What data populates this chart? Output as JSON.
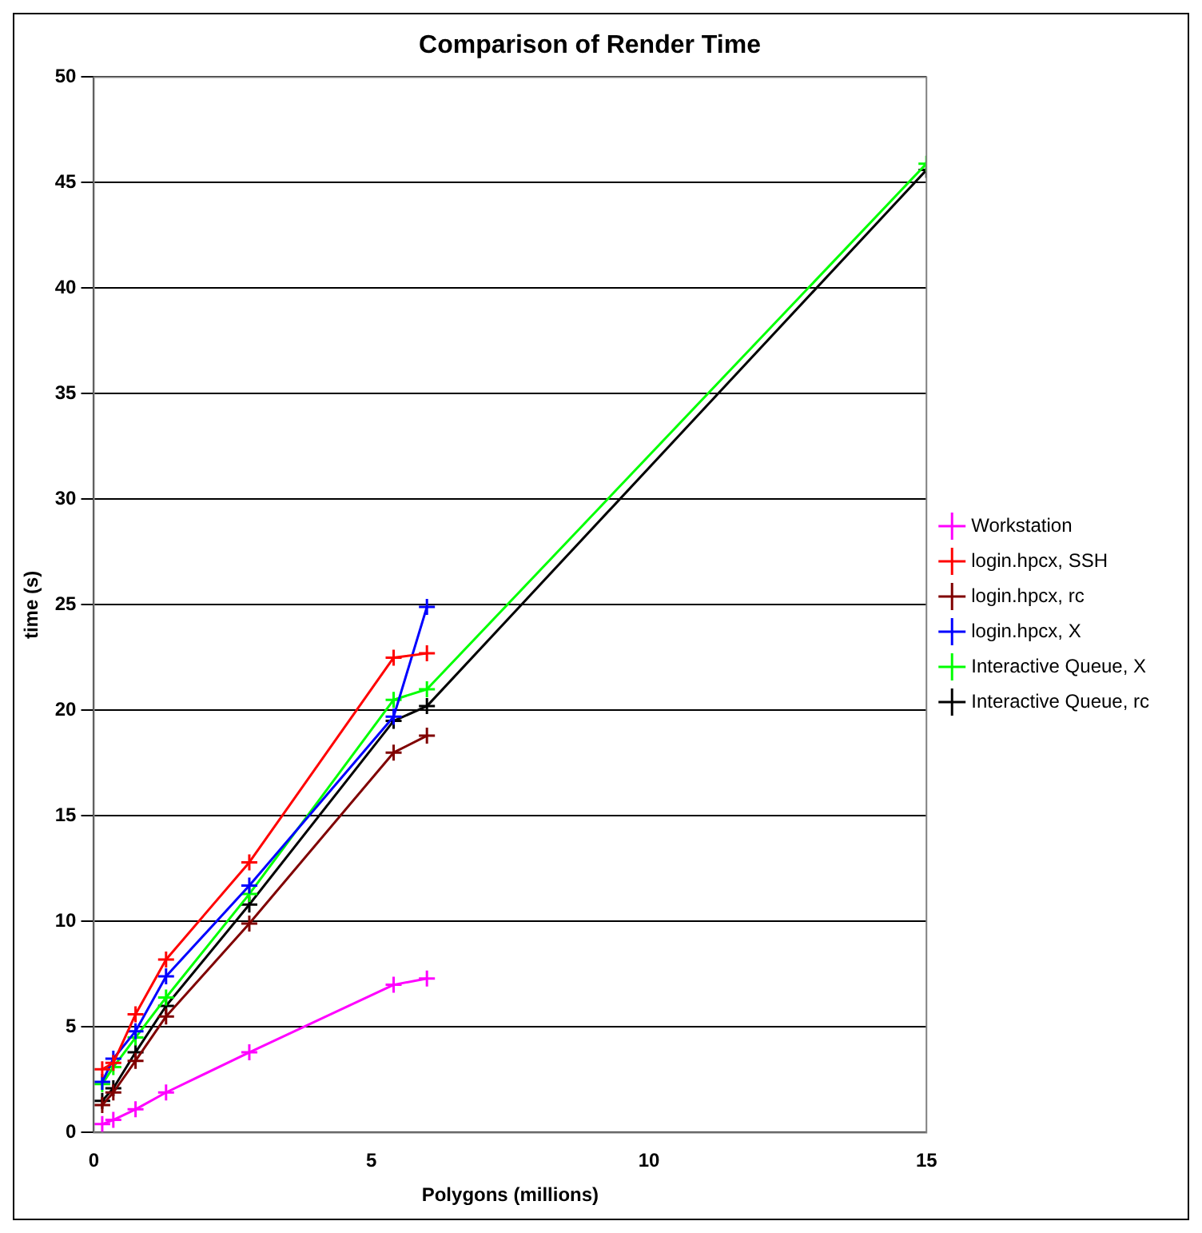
{
  "chart_data": {
    "type": "line",
    "title": "Comparison of Render Time",
    "xlabel": "Polygons (millions)",
    "ylabel": "time (s)",
    "x": [
      0.15,
      0.35,
      0.75,
      1.3,
      2.8,
      5.4,
      6.0,
      15
    ],
    "xlim": [
      0,
      15
    ],
    "xticks": [
      0,
      5,
      10,
      15
    ],
    "ylim": [
      0,
      50
    ],
    "yticks": [
      0,
      5,
      10,
      15,
      20,
      25,
      30,
      35,
      40,
      45,
      50
    ],
    "grid": "y",
    "legend": "right",
    "marker": "cross",
    "line_style": "solid",
    "series": [
      {
        "name": "Workstation",
        "color": "#ff00ff",
        "values": [
          0.4,
          0.6,
          1.1,
          1.9,
          3.8,
          7.0,
          7.3,
          null
        ]
      },
      {
        "name": "login.hpcx, SSH",
        "color": "#ff0000",
        "values": [
          3.0,
          3.3,
          5.6,
          8.2,
          12.8,
          22.5,
          22.7,
          null
        ]
      },
      {
        "name": "login.hpcx, rc",
        "color": "#800000",
        "values": [
          1.3,
          1.9,
          3.4,
          5.5,
          9.9,
          18.0,
          18.8,
          null
        ]
      },
      {
        "name": "login.hpcx, X",
        "color": "#0000ff",
        "values": [
          2.4,
          3.5,
          4.8,
          7.4,
          11.7,
          19.7,
          24.9,
          null
        ]
      },
      {
        "name": "Interactive Queue, X",
        "color": "#00ff00",
        "values": [
          2.3,
          3.1,
          4.5,
          6.4,
          11.3,
          20.5,
          21.0,
          45.9
        ]
      },
      {
        "name": "Interactive Queue, rc",
        "color": "#000000",
        "values": [
          1.5,
          2.1,
          3.8,
          6.0,
          10.8,
          19.5,
          20.2,
          45.6
        ]
      }
    ]
  }
}
